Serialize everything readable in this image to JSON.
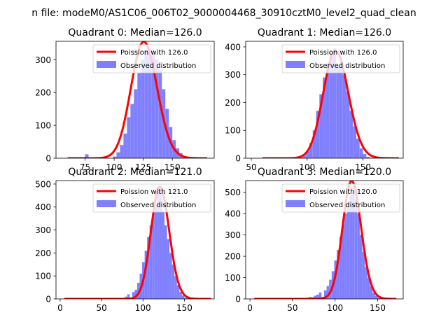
{
  "figure_title": "n file: modeM0/AS1C06_006T02_9000004468_30910cztM0_level2_quad_clean",
  "colors": {
    "poisson": "#ff0000",
    "observed": "#8080ff",
    "axis": "#000000",
    "background": "#ffffff"
  },
  "chart_data": [
    {
      "type": "bar",
      "title": "Quadrant 0: Median=126.0",
      "xlim": [
        50,
        186
      ],
      "ylim": [
        0,
        356
      ],
      "xticks": [
        75,
        100,
        125,
        150
      ],
      "yticks": [
        0,
        100,
        200,
        300
      ],
      "legend": [
        "Poission with 126.0",
        "Observed distribution"
      ],
      "legend_position": "upper right",
      "poisson_mean": 126.0,
      "bin_width": 3,
      "bins_start": [
        60,
        63,
        66,
        69,
        72,
        75,
        78,
        81,
        84,
        87,
        90,
        93,
        96,
        99,
        102,
        105,
        108,
        111,
        114,
        117,
        120,
        123,
        126,
        129,
        132,
        135,
        138,
        141,
        144,
        147,
        150,
        153,
        156,
        159,
        162,
        165,
        168,
        171,
        174,
        177
      ],
      "counts": [
        0,
        0,
        0,
        0,
        0,
        12,
        0,
        0,
        0,
        0,
        0,
        0,
        0,
        5,
        18,
        40,
        75,
        125,
        165,
        210,
        260,
        300,
        330,
        335,
        320,
        300,
        270,
        210,
        150,
        95,
        55,
        30,
        15,
        6,
        3,
        1,
        0,
        0,
        0,
        0
      ]
    },
    {
      "type": "bar",
      "title": "Quadrant 1: Median=126.0",
      "xlim": [
        45,
        186
      ],
      "ylim": [
        0,
        420
      ],
      "xticks": [
        50,
        100,
        150
      ],
      "yticks": [
        0,
        100,
        200,
        300,
        400
      ],
      "legend": [
        "Poission with 126.0",
        "Observed distribution"
      ],
      "legend_position": "upper right",
      "poisson_mean": 126.0,
      "bin_width": 3,
      "bins_start": [
        93,
        96,
        99,
        102,
        105,
        108,
        111,
        114,
        117,
        120,
        123,
        126,
        129,
        132,
        135,
        138,
        141,
        144,
        147,
        150,
        153,
        156
      ],
      "counts": [
        3,
        10,
        25,
        55,
        100,
        170,
        230,
        290,
        340,
        380,
        395,
        330,
        345,
        300,
        240,
        170,
        115,
        70,
        35,
        15,
        5,
        2
      ]
    },
    {
      "type": "bar",
      "title": "Quadrant 2: Median=121.0",
      "xlim": [
        -5,
        186
      ],
      "ylim": [
        0,
        515
      ],
      "xticks": [
        0,
        50,
        100,
        150
      ],
      "yticks": [
        0,
        100,
        200,
        300,
        400,
        500
      ],
      "legend": [
        "Poission with 121.0",
        "Observed distribution"
      ],
      "legend_position": "upper right",
      "poisson_mean": 121.0,
      "bin_width": 3,
      "bins_start": [
        78,
        81,
        84,
        87,
        90,
        93,
        96,
        99,
        102,
        105,
        108,
        111,
        114,
        117,
        120,
        123,
        126,
        129,
        132,
        135,
        138,
        141,
        144,
        147,
        150,
        153
      ],
      "counts": [
        10,
        20,
        5,
        30,
        40,
        70,
        110,
        160,
        210,
        270,
        320,
        370,
        400,
        485,
        470,
        380,
        320,
        260,
        200,
        150,
        100,
        60,
        30,
        15,
        5,
        2
      ]
    },
    {
      "type": "bar",
      "title": "Quadrant 3: Median=120.0",
      "xlim": [
        -5,
        180
      ],
      "ylim": [
        0,
        555
      ],
      "xticks": [
        0,
        50,
        100,
        150
      ],
      "yticks": [
        0,
        100,
        200,
        300,
        400,
        500
      ],
      "legend": [
        "Poission with 120.0",
        "Observed distribution"
      ],
      "legend_position": "upper right",
      "poisson_mean": 120.0,
      "bin_width": 3,
      "bins_start": [
        63,
        66,
        69,
        72,
        75,
        78,
        81,
        84,
        87,
        90,
        93,
        96,
        99,
        102,
        105,
        108,
        111,
        114,
        117,
        120,
        123,
        126,
        129,
        132,
        135,
        138,
        141,
        144,
        147,
        150
      ],
      "counts": [
        3,
        5,
        10,
        8,
        15,
        20,
        30,
        10,
        40,
        60,
        90,
        130,
        180,
        230,
        290,
        350,
        400,
        450,
        490,
        505,
        470,
        400,
        300,
        220,
        150,
        100,
        60,
        30,
        15,
        5
      ]
    }
  ]
}
